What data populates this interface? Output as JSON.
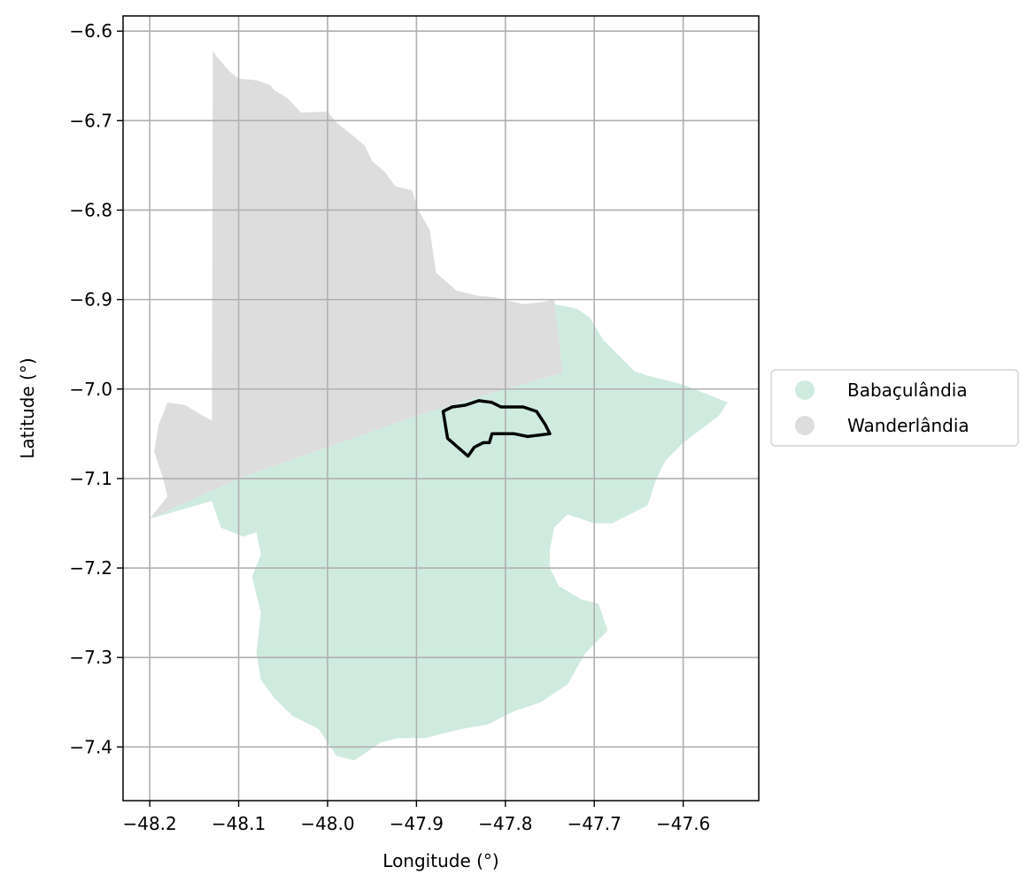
{
  "chart_data": {
    "type": "map",
    "xlabel": "Longitude (°)",
    "ylabel": "Latitude (°)",
    "xlim": [
      -48.23,
      -47.515
    ],
    "ylim": [
      -7.46,
      -6.583
    ],
    "grid": true,
    "x_ticks": [
      -48.2,
      -48.1,
      -48.0,
      -47.9,
      -47.8,
      -47.7,
      -47.6
    ],
    "x_tick_labels": [
      "−48.2",
      "−48.1",
      "−48.0",
      "−47.9",
      "−47.8",
      "−47.7",
      "−47.6"
    ],
    "y_ticks": [
      -6.6,
      -6.7,
      -6.8,
      -6.9,
      -7.0,
      -7.1,
      -7.2,
      -7.3,
      -7.4
    ],
    "y_tick_labels": [
      "−6.6",
      "−6.7",
      "−6.8",
      "−6.9",
      "−7.0",
      "−7.1",
      "−7.2",
      "−7.3",
      "−7.4"
    ],
    "legend_placement": "outside-right",
    "series": [
      {
        "name": "Babaçulândia",
        "color": "#cfebdf"
      },
      {
        "name": "Wanderlândia",
        "color": "#dddddd"
      }
    ],
    "regions": [
      {
        "name": "Wanderlândia",
        "color": "#dddddd",
        "polygon": [
          [
            -48.129,
            -6.622
          ],
          [
            -48.125,
            -6.628
          ],
          [
            -48.12,
            -6.634
          ],
          [
            -48.11,
            -6.645
          ],
          [
            -48.1,
            -6.653
          ],
          [
            -48.08,
            -6.655
          ],
          [
            -48.065,
            -6.66
          ],
          [
            -48.06,
            -6.666
          ],
          [
            -48.045,
            -6.675
          ],
          [
            -48.03,
            -6.691
          ],
          [
            -48.0,
            -6.69
          ],
          [
            -47.99,
            -6.702
          ],
          [
            -47.97,
            -6.718
          ],
          [
            -47.958,
            -6.728
          ],
          [
            -47.95,
            -6.745
          ],
          [
            -47.935,
            -6.758
          ],
          [
            -47.924,
            -6.773
          ],
          [
            -47.905,
            -6.778
          ],
          [
            -47.898,
            -6.8
          ],
          [
            -47.885,
            -6.822
          ],
          [
            -47.878,
            -6.87
          ],
          [
            -47.855,
            -6.89
          ],
          [
            -47.83,
            -6.896
          ],
          [
            -47.815,
            -6.897
          ],
          [
            -47.78,
            -6.905
          ],
          [
            -47.76,
            -6.903
          ],
          [
            -47.745,
            -6.9
          ],
          [
            -47.735,
            -6.982
          ],
          [
            -47.8,
            -7.0
          ],
          [
            -47.9,
            -7.03
          ],
          [
            -48.0,
            -7.065
          ],
          [
            -48.1,
            -7.1
          ],
          [
            -48.2,
            -7.145
          ],
          [
            -48.18,
            -7.12
          ],
          [
            -48.185,
            -7.1
          ],
          [
            -48.195,
            -7.07
          ],
          [
            -48.19,
            -7.04
          ],
          [
            -48.18,
            -7.015
          ],
          [
            -48.16,
            -7.018
          ],
          [
            -48.14,
            -7.03
          ],
          [
            -48.13,
            -7.035
          ]
        ]
      },
      {
        "name": "Babaçulândia",
        "color": "#cfebdf",
        "polygon": [
          [
            -47.745,
            -6.905
          ],
          [
            -47.72,
            -6.91
          ],
          [
            -47.705,
            -6.92
          ],
          [
            -47.69,
            -6.945
          ],
          [
            -47.68,
            -6.955
          ],
          [
            -47.665,
            -6.97
          ],
          [
            -47.655,
            -6.98
          ],
          [
            -47.64,
            -6.985
          ],
          [
            -47.62,
            -6.99
          ],
          [
            -47.6,
            -6.995
          ],
          [
            -47.55,
            -7.015
          ],
          [
            -47.56,
            -7.03
          ],
          [
            -47.58,
            -7.045
          ],
          [
            -47.6,
            -7.06
          ],
          [
            -47.62,
            -7.08
          ],
          [
            -47.63,
            -7.1
          ],
          [
            -47.64,
            -7.13
          ],
          [
            -47.66,
            -7.14
          ],
          [
            -47.68,
            -7.15
          ],
          [
            -47.7,
            -7.15
          ],
          [
            -47.73,
            -7.14
          ],
          [
            -47.745,
            -7.155
          ],
          [
            -47.75,
            -7.18
          ],
          [
            -47.75,
            -7.2
          ],
          [
            -47.74,
            -7.22
          ],
          [
            -47.715,
            -7.235
          ],
          [
            -47.695,
            -7.24
          ],
          [
            -47.685,
            -7.27
          ],
          [
            -47.71,
            -7.295
          ],
          [
            -47.73,
            -7.33
          ],
          [
            -47.76,
            -7.35
          ],
          [
            -47.79,
            -7.36
          ],
          [
            -47.82,
            -7.375
          ],
          [
            -47.85,
            -7.38
          ],
          [
            -47.89,
            -7.39
          ],
          [
            -47.92,
            -7.39
          ],
          [
            -47.94,
            -7.395
          ],
          [
            -47.97,
            -7.415
          ],
          [
            -47.99,
            -7.41
          ],
          [
            -48.01,
            -7.38
          ],
          [
            -48.04,
            -7.365
          ],
          [
            -48.06,
            -7.345
          ],
          [
            -48.075,
            -7.325
          ],
          [
            -48.08,
            -7.295
          ],
          [
            -48.075,
            -7.25
          ],
          [
            -48.085,
            -7.21
          ],
          [
            -48.075,
            -7.185
          ],
          [
            -48.08,
            -7.16
          ],
          [
            -48.095,
            -7.165
          ],
          [
            -48.12,
            -7.155
          ],
          [
            -48.13,
            -7.125
          ],
          [
            -48.2,
            -7.145
          ],
          [
            -48.1,
            -7.1
          ],
          [
            -48.0,
            -7.065
          ],
          [
            -47.9,
            -7.03
          ],
          [
            -47.8,
            -7.0
          ],
          [
            -47.735,
            -6.982
          ]
        ]
      }
    ],
    "outline": {
      "color": "#000000",
      "polygon": [
        [
          -47.87,
          -7.025
        ],
        [
          -47.86,
          -7.02
        ],
        [
          -47.845,
          -7.018
        ],
        [
          -47.83,
          -7.013
        ],
        [
          -47.815,
          -7.015
        ],
        [
          -47.805,
          -7.02
        ],
        [
          -47.78,
          -7.02
        ],
        [
          -47.765,
          -7.025
        ],
        [
          -47.755,
          -7.04
        ],
        [
          -47.75,
          -7.05
        ],
        [
          -47.775,
          -7.053
        ],
        [
          -47.79,
          -7.05
        ],
        [
          -47.8,
          -7.05
        ],
        [
          -47.815,
          -7.05
        ],
        [
          -47.818,
          -7.06
        ],
        [
          -47.825,
          -7.06
        ],
        [
          -47.835,
          -7.065
        ],
        [
          -47.842,
          -7.075
        ],
        [
          -47.865,
          -7.055
        ]
      ]
    }
  }
}
